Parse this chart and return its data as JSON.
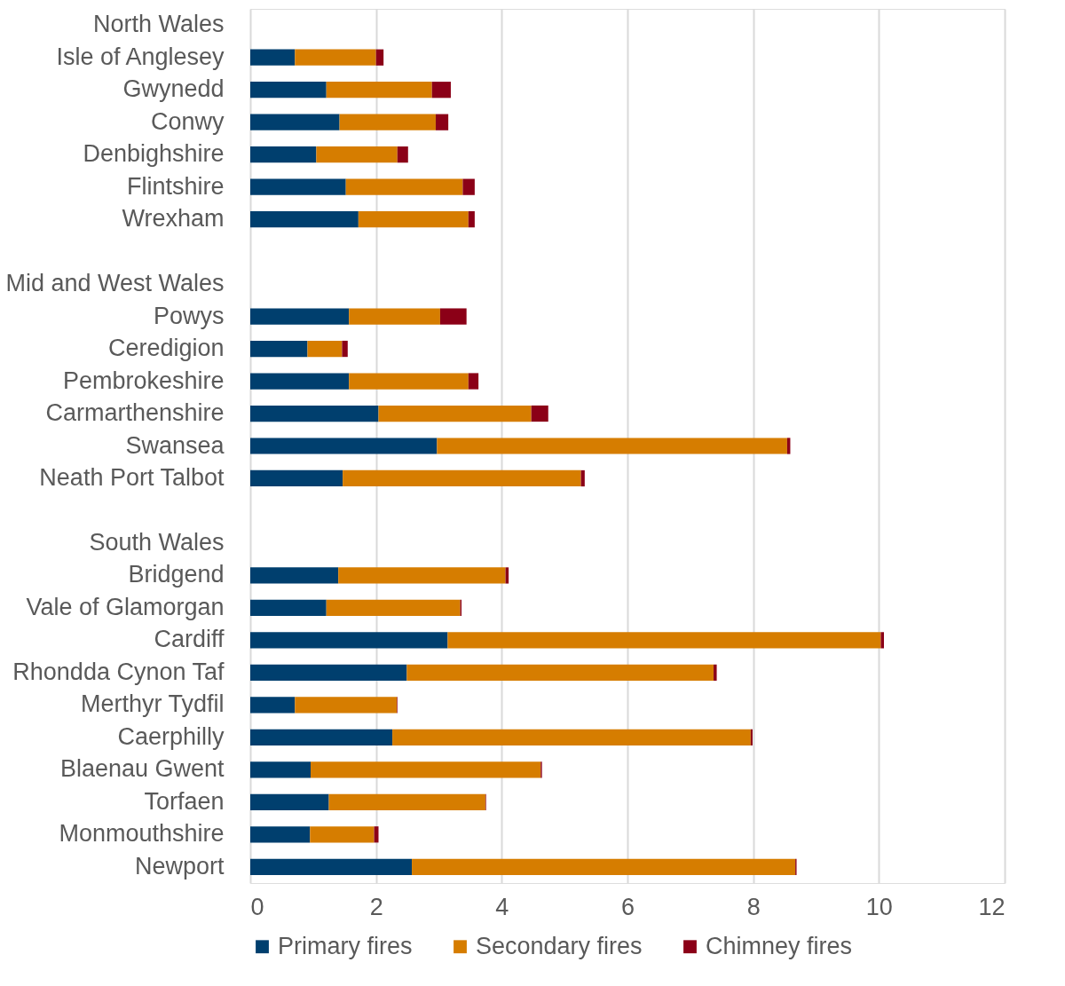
{
  "chart_data": {
    "type": "bar",
    "orientation": "horizontal",
    "stacked": true,
    "categories": [
      "North Wales",
      "Isle of Anglesey",
      "Gwynedd",
      "Conwy",
      "Denbighshire",
      "Flintshire",
      "Wrexham",
      null,
      "Mid and West Wales",
      "Powys",
      "Ceredigion",
      "Pembrokeshire",
      "Carmarthenshire",
      "Swansea",
      "Neath Port Talbot",
      null,
      "South Wales",
      "Bridgend",
      "Vale of Glamorgan",
      "Cardiff",
      "Rhondda Cynon Taf",
      "Merthyr Tydfil",
      "Caerphilly",
      "Blaenau Gwent",
      "Torfaen",
      "Monmouthshire",
      "Newport"
    ],
    "series": [
      {
        "name": "Primary fires",
        "color": "#003f6e",
        "values": [
          null,
          0.71,
          1.21,
          1.42,
          1.05,
          1.52,
          1.72,
          null,
          null,
          1.57,
          0.91,
          1.57,
          2.04,
          2.97,
          1.47,
          null,
          null,
          1.4,
          1.21,
          3.14,
          2.49,
          0.71,
          2.26,
          0.96,
          1.25,
          0.95,
          2.57
        ]
      },
      {
        "name": "Secondary fires",
        "color": "#d67d00",
        "values": [
          null,
          1.29,
          1.68,
          1.53,
          1.29,
          1.86,
          1.75,
          null,
          null,
          1.45,
          0.55,
          1.9,
          2.43,
          5.57,
          3.79,
          null,
          null,
          2.66,
          2.13,
          6.89,
          4.88,
          1.62,
          5.7,
          3.66,
          2.49,
          1.02,
          6.1
        ]
      },
      {
        "name": "Chimney fires",
        "color": "#8b0017",
        "values": [
          null,
          0.12,
          0.3,
          0.2,
          0.17,
          0.19,
          0.1,
          null,
          null,
          0.42,
          0.09,
          0.16,
          0.27,
          0.05,
          0.06,
          null,
          null,
          0.05,
          0.02,
          0.05,
          0.05,
          0.01,
          0.03,
          0.02,
          0.01,
          0.07,
          0.02
        ]
      }
    ],
    "xlim": [
      0,
      12
    ],
    "xticks": [
      0,
      2,
      4,
      6,
      8,
      10,
      12
    ],
    "grid": "x",
    "legend": "bottom"
  }
}
